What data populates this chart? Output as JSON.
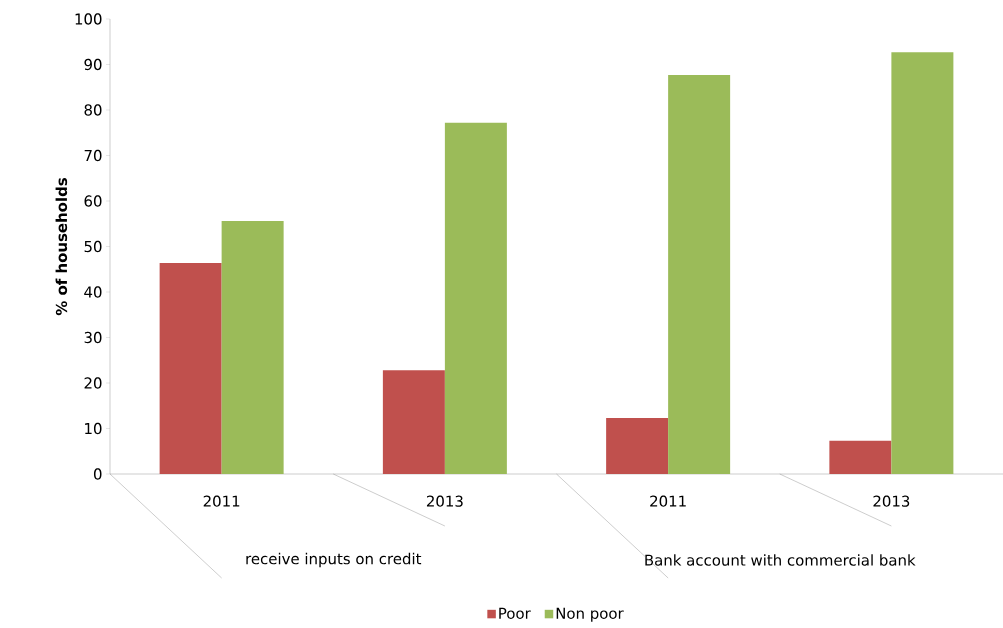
{
  "chart_data": {
    "type": "bar",
    "ylabel": "**% of households**",
    "categories": [
      "2011",
      "2013",
      "2011",
      "2013"
    ],
    "series": [
      {
        "name": "Poor",
        "color": "#c0504d",
        "values": [
          46.4,
          22.8,
          12.3,
          7.3
        ]
      },
      {
        "name": "Non poor",
        "color": "#9bbb59",
        "values": [
          55.6,
          77.2,
          87.7,
          92.7
        ]
      }
    ],
    "annotations": [
      "receive inputs on credit",
      "Bank account with commercial bank"
    ],
    "ylim": [
      0,
      100
    ],
    "yticks": [
      0,
      10,
      20,
      30,
      40,
      50,
      60,
      70,
      80,
      90,
      100
    ],
    "grid": false,
    "legend": "bottom"
  }
}
